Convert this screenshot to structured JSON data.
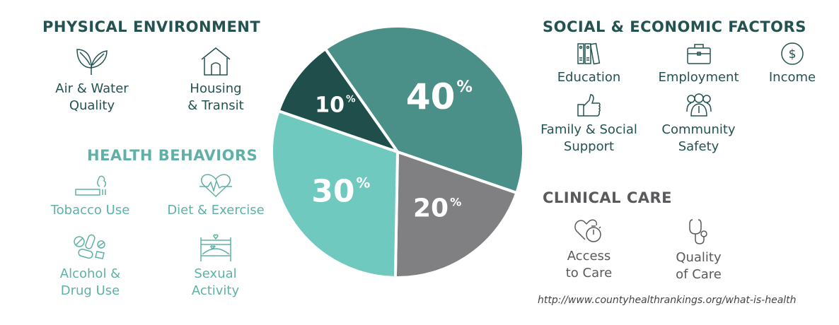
{
  "physical_environment": {
    "heading": "PHYSICAL ENVIRONMENT",
    "items": [
      {
        "line1": "Air & Water",
        "line2": "Quality",
        "icon": "leaf-icon"
      },
      {
        "line1": "Housing",
        "line2": "& Transit",
        "icon": "house-icon"
      }
    ]
  },
  "health_behaviors": {
    "heading": "HEALTH BEHAVIORS",
    "items": [
      {
        "line1": "Tobacco Use",
        "icon": "cigarette-icon"
      },
      {
        "line1": "Diet & Exercise",
        "icon": "heartbeat-icon"
      },
      {
        "line1": "Alcohol &",
        "line2": "Drug Use",
        "icon": "pills-icon"
      },
      {
        "line1": "Sexual",
        "line2": "Activity",
        "icon": "bed-icon"
      }
    ]
  },
  "social_economic": {
    "heading": "SOCIAL & ECONOMIC FACTORS",
    "items": [
      {
        "line1": "Education",
        "icon": "binders-icon"
      },
      {
        "line1": "Employment",
        "icon": "briefcase-icon"
      },
      {
        "line1": "Income",
        "icon": "dollar-icon"
      },
      {
        "line1": "Family & Social",
        "line2": "Support",
        "icon": "thumbs-up-icon"
      },
      {
        "line1": "Community",
        "line2": "Safety",
        "icon": "people-icon"
      }
    ]
  },
  "clinical_care": {
    "heading": "CLINICAL CARE",
    "items": [
      {
        "line1": "Access",
        "line2": "to Care",
        "icon": "heart-stopwatch-icon"
      },
      {
        "line1": "Quality",
        "line2": "of Care",
        "icon": "stethoscope-icon"
      }
    ]
  },
  "source": "http://www.countyhealthrankings.org/what-is-health",
  "colors": {
    "dark": "#235350",
    "teal": "#5fb0a6",
    "gray": "#5a5a5c"
  },
  "chart_data": {
    "type": "pie",
    "start_angle_deg": -35,
    "direction": "clockwise",
    "slices": [
      {
        "category": "Social & Economic Factors",
        "value": 40,
        "label": "40",
        "unit": "%",
        "color": "#4b9088"
      },
      {
        "category": "Clinical Care",
        "value": 20,
        "label": "20",
        "unit": "%",
        "color": "#808083"
      },
      {
        "category": "Health Behaviors",
        "value": 30,
        "label": "30",
        "unit": "%",
        "color": "#6fc9bf"
      },
      {
        "category": "Physical Environment",
        "value": 10,
        "label": "10",
        "unit": "%",
        "color": "#1f4e4b"
      }
    ]
  }
}
